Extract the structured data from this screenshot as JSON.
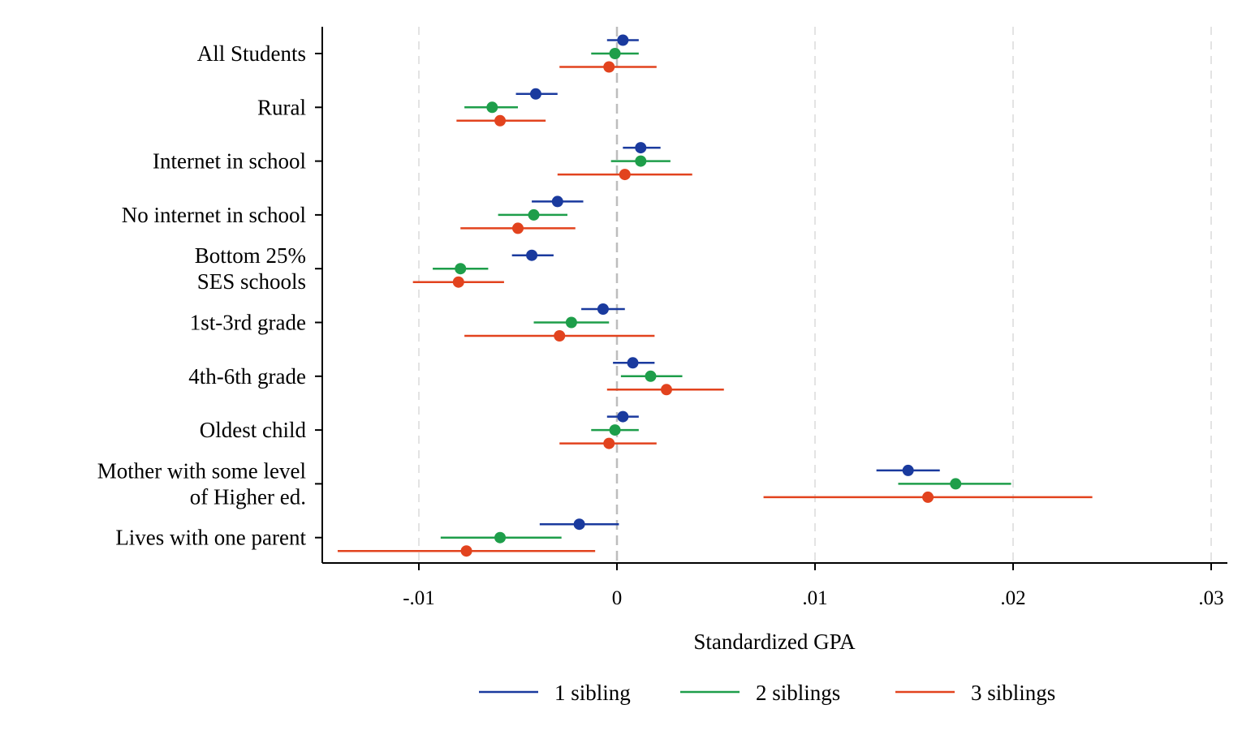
{
  "chart_data": {
    "type": "scatter",
    "xlabel": "Standardized GPA",
    "xlim": [
      -0.015,
      0.0308
    ],
    "x_ticks": [
      -0.01,
      0,
      0.01,
      0.02,
      0.03
    ],
    "x_tick_labels": [
      "-.01",
      "0",
      ".01",
      ".02",
      ".03"
    ],
    "grid": "vertical dashed at x ticks",
    "reference_line": 0,
    "legend_position": "bottom",
    "categories": [
      [
        "All Students"
      ],
      [
        "Rural"
      ],
      [
        "Internet in school"
      ],
      [
        "No internet in school"
      ],
      [
        "Bottom 25%",
        "SES schools"
      ],
      [
        "1st-3rd grade"
      ],
      [
        "4th-6th grade"
      ],
      [
        "Oldest child"
      ],
      [
        "Mother with some level",
        "of Higher ed."
      ],
      [
        "Lives with one parent"
      ]
    ],
    "series": [
      {
        "name": "1 sibling",
        "color": "#1a3a9e",
        "estimate": [
          0.0003,
          -0.0041,
          0.0012,
          -0.003,
          -0.0043,
          -0.0007,
          0.0008,
          0.0003,
          0.0147,
          -0.0019
        ],
        "ci_low": [
          -0.0005,
          -0.0051,
          0.0003,
          -0.0043,
          -0.0053,
          -0.0018,
          -0.0002,
          -0.0005,
          0.0131,
          -0.0039
        ],
        "ci_high": [
          0.0011,
          -0.003,
          0.0022,
          -0.0017,
          -0.0032,
          0.0004,
          0.0019,
          0.0011,
          0.0163,
          0.0001
        ]
      },
      {
        "name": "2 siblings",
        "color": "#1e9e4a",
        "estimate": [
          -0.0001,
          -0.0063,
          0.0012,
          -0.0042,
          -0.0079,
          -0.0023,
          0.0017,
          -0.0001,
          0.0171,
          -0.0059
        ],
        "ci_low": [
          -0.0013,
          -0.0077,
          -0.0003,
          -0.006,
          -0.0093,
          -0.0042,
          0.0002,
          -0.0013,
          0.0142,
          -0.0089
        ],
        "ci_high": [
          0.0011,
          -0.005,
          0.0027,
          -0.0025,
          -0.0065,
          -0.0004,
          0.0033,
          0.0011,
          0.0199,
          -0.0028
        ]
      },
      {
        "name": "3 siblings",
        "color": "#e2431e",
        "estimate": [
          -0.0004,
          -0.0059,
          0.0004,
          -0.005,
          -0.008,
          -0.0029,
          0.0025,
          -0.0004,
          0.0157,
          -0.0076
        ],
        "ci_low": [
          -0.0029,
          -0.0081,
          -0.003,
          -0.0079,
          -0.0103,
          -0.0077,
          -0.0005,
          -0.0029,
          0.0074,
          -0.0141
        ],
        "ci_high": [
          0.002,
          -0.0036,
          0.0038,
          -0.0021,
          -0.0057,
          0.0019,
          0.0054,
          0.002,
          0.024,
          -0.0011
        ]
      }
    ]
  }
}
